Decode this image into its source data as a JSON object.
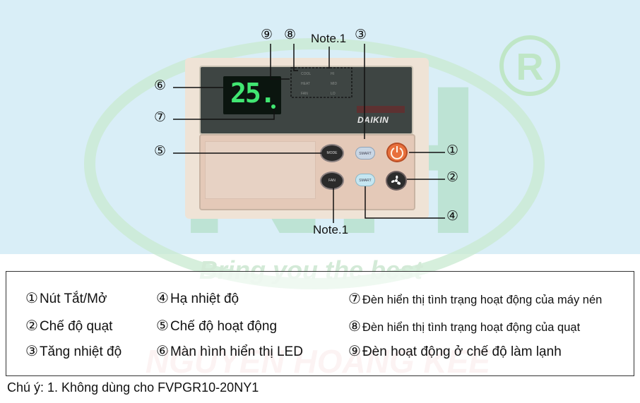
{
  "panel": {
    "lcd_value": "25.",
    "brand": "DAIKIN",
    "indicator_labels": [
      "COOL",
      "HEAT",
      "FAN",
      "HI",
      "MID",
      "LO"
    ],
    "button_labels": {
      "mode": "MODE",
      "fan_mode": "FAN",
      "up": "SMART",
      "down": "SMART"
    }
  },
  "callouts": [
    "⑨",
    "⑧",
    "③",
    "⑥",
    "⑦",
    "⑤",
    "①",
    "②",
    "④"
  ],
  "notes": {
    "top": "Note.1",
    "bottom": "Note.1"
  },
  "legend": {
    "col1": [
      "Nút Tắt/Mở",
      "Chế độ quạt",
      "Tăng nhiệt độ"
    ],
    "col1_nums": [
      "①",
      "②",
      "③"
    ],
    "col2": [
      "Hạ nhiệt độ",
      "Chế độ hoạt động",
      "Màn hình hiển thị LED"
    ],
    "col2_nums": [
      "④",
      "⑤",
      "⑥"
    ],
    "col3": [
      "Đèn hiển thị tình trạng hoạt động của máy nén",
      "Đèn hiển thị tình trạng hoạt động của quạt",
      "Đèn hoạt động ở chế độ làm lạnh"
    ],
    "col3_nums": [
      "⑦",
      "⑧",
      "⑨"
    ]
  },
  "footnote": "Chú ý:  1. Không dùng cho FVPGR10-20NY1",
  "watermark": {
    "slogan": "Bring you the best",
    "company": "NGUYEN HOANG KEE",
    "logo": "NH",
    "mark": "®"
  },
  "colors": {
    "background": "#d9eef7",
    "lcd_green": "#41e672",
    "power_orange": "#e8703c"
  }
}
